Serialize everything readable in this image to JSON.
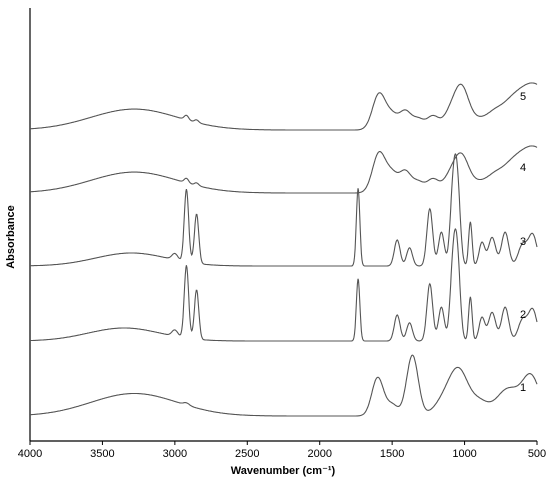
{
  "chart_data": {
    "type": "line",
    "title": "",
    "xlabel": "Wavenumber (cm⁻¹)",
    "ylabel": "Absorbance",
    "xlim": [
      4000,
      500
    ],
    "x_reversed": true,
    "x_ticks": [
      {
        "value": 4000,
        "label": "4000"
      },
      {
        "value": 3500,
        "label": "3500"
      },
      {
        "value": 3000,
        "label": "3000"
      },
      {
        "value": 2500,
        "label": "2500"
      },
      {
        "value": 2000,
        "label": "2000"
      },
      {
        "value": 1500,
        "label": "1500"
      },
      {
        "value": 1000,
        "label": "1000"
      },
      {
        "value": 500,
        "label": "500"
      }
    ],
    "y_ticks_shown": false,
    "grid": false,
    "legend": "none",
    "line_color": "#555555",
    "series": [
      {
        "label": "5",
        "label_x": 600,
        "baseline": 0.0,
        "peaks": [
          [
            3280,
            0.55,
            300
          ],
          [
            2920,
            0.12,
            15
          ],
          [
            2850,
            0.07,
            15
          ],
          [
            1590,
            0.95,
            45
          ],
          [
            1500,
            0.35,
            40
          ],
          [
            1410,
            0.48,
            40
          ],
          [
            1320,
            0.28,
            40
          ],
          [
            1220,
            0.35,
            40
          ],
          [
            1100,
            0.4,
            50
          ],
          [
            1020,
            1.05,
            50
          ],
          [
            900,
            0.25,
            60
          ],
          [
            800,
            0.22,
            50
          ],
          [
            700,
            0.4,
            80
          ],
          [
            520,
            1.2,
            120
          ]
        ]
      },
      {
        "label": "4",
        "label_x": 600,
        "baseline": 0.0,
        "peaks": [
          [
            3280,
            0.55,
            300
          ],
          [
            2920,
            0.12,
            15
          ],
          [
            2850,
            0.07,
            15
          ],
          [
            1590,
            1.05,
            45
          ],
          [
            1500,
            0.45,
            40
          ],
          [
            1410,
            0.55,
            40
          ],
          [
            1320,
            0.28,
            40
          ],
          [
            1220,
            0.35,
            40
          ],
          [
            1100,
            0.4,
            50
          ],
          [
            1020,
            0.9,
            50
          ],
          [
            900,
            0.25,
            60
          ],
          [
            800,
            0.22,
            50
          ],
          [
            700,
            0.4,
            80
          ],
          [
            520,
            1.2,
            120
          ]
        ]
      },
      {
        "label": "3",
        "label_x": 600,
        "baseline": 0.0,
        "peaks": [
          [
            3300,
            0.25,
            250
          ],
          [
            3000,
            0.12,
            20
          ],
          [
            2920,
            1.4,
            15
          ],
          [
            2850,
            0.95,
            15
          ],
          [
            1735,
            1.5,
            12
          ],
          [
            1465,
            0.5,
            20
          ],
          [
            1380,
            0.35,
            20
          ],
          [
            1240,
            1.1,
            20
          ],
          [
            1160,
            0.65,
            20
          ],
          [
            1080,
            1.35,
            20
          ],
          [
            1050,
            1.5,
            20
          ],
          [
            960,
            0.85,
            12
          ],
          [
            880,
            0.45,
            20
          ],
          [
            810,
            0.55,
            25
          ],
          [
            720,
            0.65,
            25
          ],
          [
            600,
            0.4,
            30
          ],
          [
            530,
            0.6,
            30
          ]
        ]
      },
      {
        "label": "2",
        "label_x": 600,
        "baseline": 0.0,
        "peaks": [
          [
            3350,
            0.25,
            250
          ],
          [
            3000,
            0.12,
            20
          ],
          [
            2920,
            1.4,
            15
          ],
          [
            2850,
            0.95,
            15
          ],
          [
            1735,
            1.2,
            12
          ],
          [
            1465,
            0.5,
            20
          ],
          [
            1380,
            0.35,
            20
          ],
          [
            1240,
            1.1,
            20
          ],
          [
            1160,
            0.65,
            20
          ],
          [
            1080,
            1.35,
            20
          ],
          [
            1050,
            1.5,
            20
          ],
          [
            960,
            0.85,
            12
          ],
          [
            880,
            0.45,
            20
          ],
          [
            810,
            0.55,
            25
          ],
          [
            720,
            0.65,
            25
          ],
          [
            600,
            0.4,
            30
          ],
          [
            530,
            0.6,
            30
          ]
        ]
      },
      {
        "label": "1",
        "label_x": 600,
        "baseline": 0.0,
        "peaks": [
          [
            3280,
            0.5,
            300
          ],
          [
            2920,
            0.05,
            20
          ],
          [
            1600,
            0.85,
            40
          ],
          [
            1500,
            0.25,
            40
          ],
          [
            1360,
            1.35,
            40
          ],
          [
            1100,
            0.55,
            80
          ],
          [
            1030,
            0.65,
            60
          ],
          [
            900,
            0.3,
            60
          ],
          [
            700,
            0.6,
            80
          ],
          [
            540,
            0.85,
            60
          ]
        ]
      }
    ]
  }
}
